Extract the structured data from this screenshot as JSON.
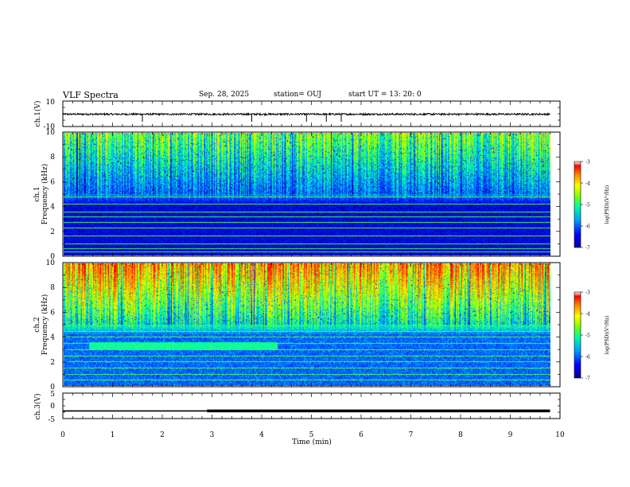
{
  "header": {
    "title": "VLF Spectra",
    "date": "Sep. 28, 2025",
    "station": "station= OUJ",
    "start": "start  UT  =   13: 20: 0"
  },
  "colors": {
    "background": "#ffffff",
    "axis": "#000000",
    "colormap": [
      "#ffffff",
      "#0000a0",
      "#0000ff",
      "#00a0ff",
      "#00ffa0",
      "#80ff00",
      "#ffff00",
      "#ff8000",
      "#ff0000"
    ]
  },
  "chart_data": [
    {
      "type": "line",
      "panel": "ch1-waveform",
      "ylabel": "ch.1(V)",
      "ylim": [
        -10,
        10
      ],
      "yticks": [
        "10",
        "-10"
      ],
      "xlim": [
        0,
        10
      ],
      "baseline": 0,
      "spikes_x": [
        1.6,
        3.8,
        4.9,
        5.3,
        5.6
      ]
    },
    {
      "type": "heatmap",
      "panel": "ch1-spectrogram",
      "ylabel": "ch.1\nFrequency (kHz)",
      "ylabel_top": "ch.1",
      "ylabel_bottom": "Frequency (kHz)",
      "ylim": [
        0,
        10
      ],
      "yticks": [
        "0",
        "2",
        "4",
        "6",
        "8",
        "10"
      ],
      "xlim": [
        0,
        9.8
      ],
      "colorbar": {
        "label": "log(PSD)(V²/Hz)",
        "ticks": [
          "-3",
          "-4",
          "-5",
          "-6",
          "-7"
        ],
        "range": [
          -7,
          -3
        ]
      },
      "features": {
        "upper_band_kHz": [
          5,
          10
        ],
        "upper_level": 0.55,
        "lower_level": 0.15,
        "harmonic_lines_kHz": [
          0.3,
          0.6,
          1.0,
          1.6,
          2.3,
          2.7,
          3.2,
          3.6,
          4.2,
          4.8
        ]
      }
    },
    {
      "type": "heatmap",
      "panel": "ch2-spectrogram",
      "ylabel": "ch.2\nFrequency (kHz)",
      "ylabel_top": "ch.2",
      "ylabel_bottom": "Frequency (kHz)",
      "ylim": [
        0,
        10
      ],
      "yticks": [
        "0",
        "2",
        "4",
        "6",
        "8",
        "10"
      ],
      "xlim": [
        0,
        9.8
      ],
      "colorbar": {
        "label": "log(PSD)(V²/Hz)",
        "ticks": [
          "-3",
          "-4",
          "-5",
          "-6",
          "-7"
        ],
        "range": [
          -7,
          -3
        ]
      },
      "features": {
        "upper_band_kHz": [
          5,
          10
        ],
        "upper_level": 0.8,
        "lower_level": 0.3,
        "emission_band": {
          "t_start_min": 0.5,
          "t_end_min": 4.3,
          "f_low_kHz": 3.0,
          "f_high_kHz": 3.6
        },
        "harmonic_lines_kHz": [
          0.5,
          1.0,
          1.5,
          2.0,
          2.5,
          3.0,
          3.5,
          4.0,
          4.5
        ]
      }
    },
    {
      "type": "line",
      "panel": "ch3-waveform",
      "ylabel": "ch.3(V)",
      "ylim": [
        -5,
        5
      ],
      "yticks": [
        "5",
        "0",
        "-5"
      ],
      "xlim": [
        0,
        10
      ],
      "level_V": -2.0,
      "thick_from_min": 2.9
    }
  ],
  "xaxis": {
    "label": "Time (min)",
    "ticks": [
      "0",
      "1",
      "2",
      "3",
      "4",
      "5",
      "6",
      "7",
      "8",
      "9",
      "10"
    ]
  }
}
